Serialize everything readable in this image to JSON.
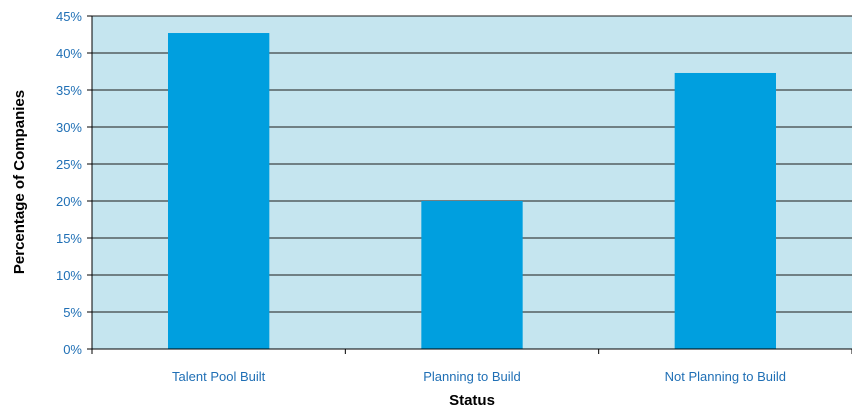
{
  "chart_data": {
    "type": "bar",
    "categories": [
      "Talent Pool Built",
      "Planning to Build",
      "Not Planning to Build"
    ],
    "values": [
      42.7,
      20.0,
      37.3
    ],
    "title": "",
    "xlabel": "Status",
    "ylabel": "Percentage of Companies",
    "ylim": [
      0,
      45
    ],
    "yticks": [
      0,
      5,
      10,
      15,
      20,
      25,
      30,
      35,
      40,
      45
    ],
    "ytick_labels": [
      "0%",
      "5%",
      "10%",
      "15%",
      "20%",
      "25%",
      "30%",
      "35%",
      "40%",
      "45%"
    ],
    "grid": true,
    "legend": "none",
    "colors": {
      "bar": "#009fdf",
      "plot_background": "#c5e5ef",
      "gridline": "#1a1a1a",
      "tick_label": "#1f6fb5"
    }
  }
}
